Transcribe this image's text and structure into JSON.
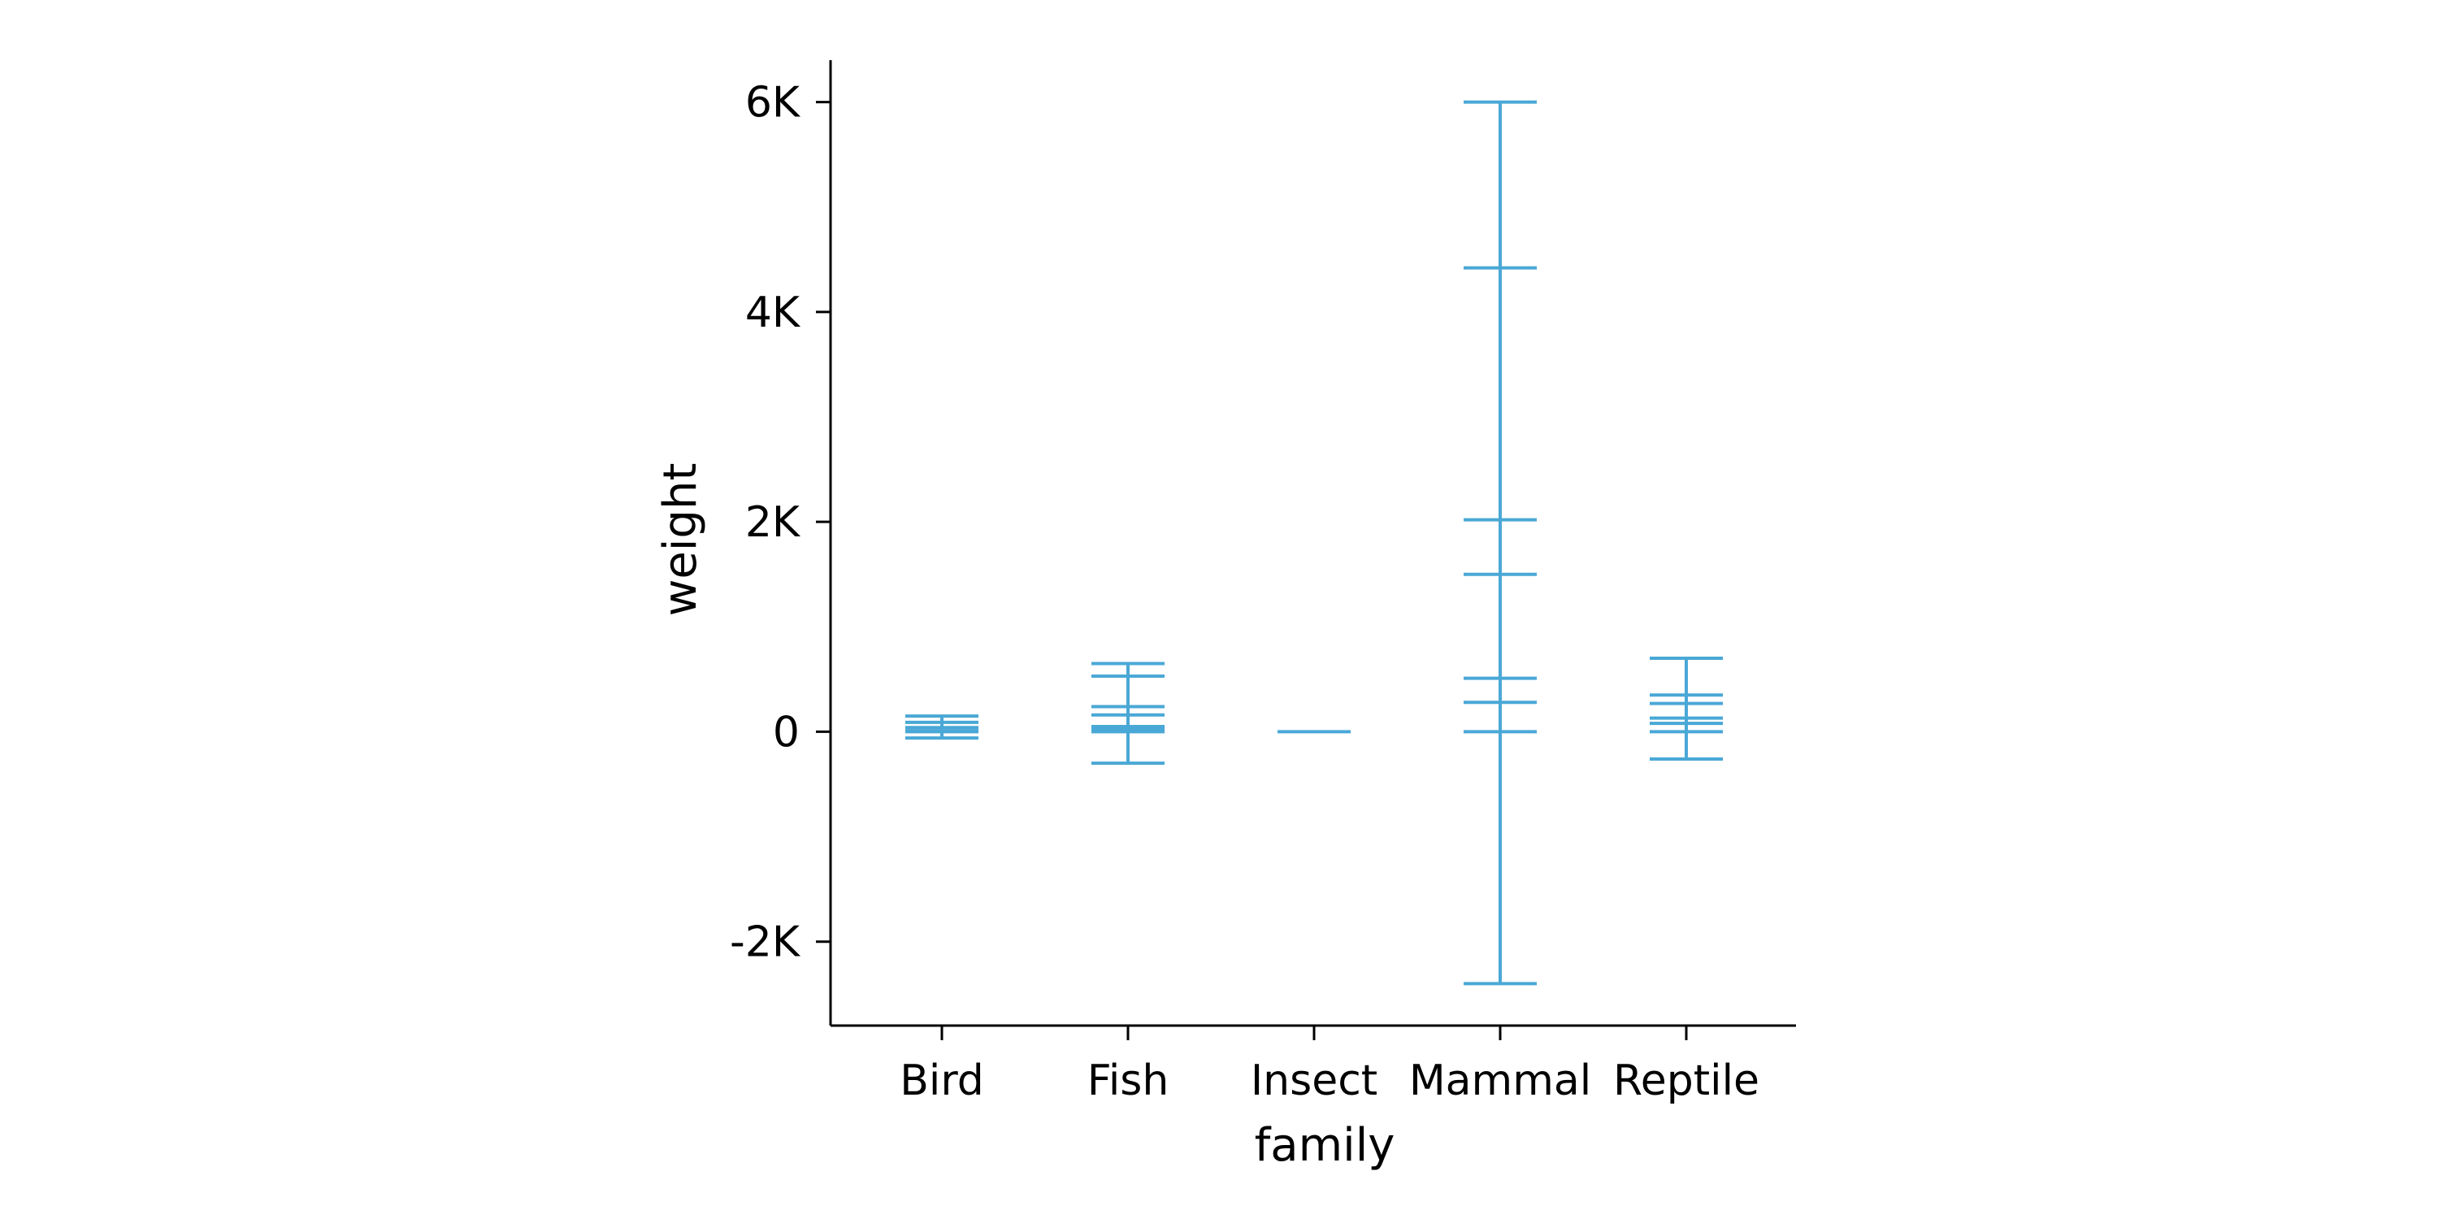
{
  "chart_data": {
    "type": "errorbar",
    "xlabel": "family",
    "ylabel": "weight",
    "categories": [
      "Bird",
      "Fish",
      "Insect",
      "Mammal",
      "Reptile"
    ],
    "ylim": [
      -2800,
      6400
    ],
    "yticks": [
      -2000,
      0,
      2000,
      4000,
      6000
    ],
    "ytick_labels": [
      "-2K",
      "0",
      "2K",
      "4K",
      "6K"
    ],
    "grid": false,
    "color": "#4aa8d6",
    "groups": [
      {
        "category": "Bird",
        "min": -60,
        "max": 150,
        "levels": [
          150,
          90,
          40,
          10,
          0,
          -60
        ]
      },
      {
        "category": "Fish",
        "min": -300,
        "max": 650,
        "levels": [
          650,
          530,
          240,
          160,
          50,
          20,
          0,
          -300
        ]
      },
      {
        "category": "Insect",
        "min": 0,
        "max": 0,
        "levels": [
          0
        ]
      },
      {
        "category": "Mammal",
        "min": -2400,
        "max": 6000,
        "levels": [
          6000,
          4420,
          2020,
          1500,
          510,
          280,
          0,
          -2400
        ]
      },
      {
        "category": "Reptile",
        "min": -260,
        "max": 700,
        "levels": [
          700,
          350,
          270,
          130,
          80,
          0,
          -260
        ]
      }
    ]
  }
}
